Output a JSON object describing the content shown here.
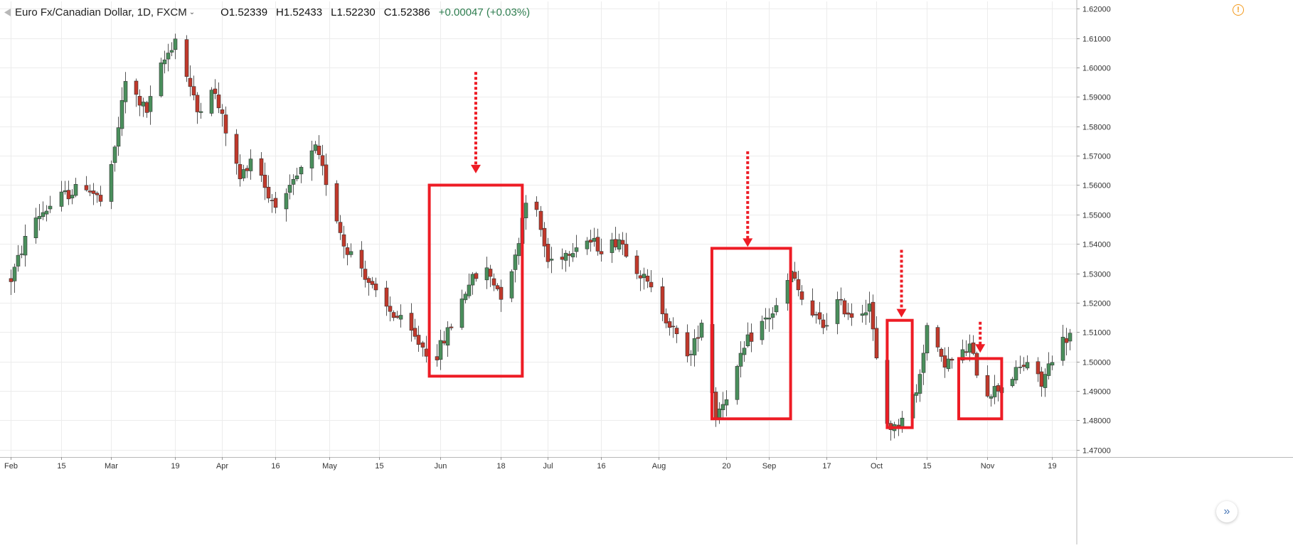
{
  "header": {
    "title": "Euro Fx/Canadian Dollar, 1D, FXCM",
    "chevron": "⌄",
    "open": "O1.52339",
    "high": "H1.52433",
    "low": "L1.52230",
    "close": "C1.52386",
    "change": "+0.00047 (+0.03%)"
  },
  "alert_icon": "!",
  "scroll_button": "»",
  "colors": {
    "up": "#4a8f5c",
    "down": "#c0392b",
    "grid": "#ececec",
    "annotation": "#ee1c25"
  },
  "chart_data": {
    "type": "candlestick",
    "x_ticks": [
      {
        "day": 0,
        "label": "Feb"
      },
      {
        "day": 14,
        "label": "15"
      },
      {
        "day": 28,
        "label": "Mar"
      },
      {
        "day": 46,
        "label": "19"
      },
      {
        "day": 59,
        "label": "Apr"
      },
      {
        "day": 74,
        "label": "16"
      },
      {
        "day": 89,
        "label": "May"
      },
      {
        "day": 103,
        "label": "15"
      },
      {
        "day": 120,
        "label": "Jun"
      },
      {
        "day": 137,
        "label": "18"
      },
      {
        "day": 150,
        "label": "Jul"
      },
      {
        "day": 165,
        "label": "16"
      },
      {
        "day": 181,
        "label": "Aug"
      },
      {
        "day": 200,
        "label": "20"
      },
      {
        "day": 212,
        "label": "Sep"
      },
      {
        "day": 228,
        "label": "17"
      },
      {
        "day": 242,
        "label": "Oct"
      },
      {
        "day": 256,
        "label": "15"
      },
      {
        "day": 273,
        "label": "Nov"
      },
      {
        "day": 291,
        "label": "19"
      }
    ],
    "y_ticks": [
      "1.62000",
      "1.61000",
      "1.60000",
      "1.59000",
      "1.58000",
      "1.57000",
      "1.56000",
      "1.55000",
      "1.54000",
      "1.53000",
      "1.52000",
      "1.51000",
      "1.50000",
      "1.49000",
      "1.48000",
      "1.47000"
    ],
    "ylim": [
      1.4675,
      1.6225
    ],
    "xlim_days": [
      -3,
      298
    ],
    "trend": [
      [
        0,
        1.528
      ],
      [
        6,
        1.548
      ],
      [
        14,
        1.556
      ],
      [
        21,
        1.56
      ],
      [
        26,
        1.553
      ],
      [
        28,
        1.565
      ],
      [
        32,
        1.595
      ],
      [
        38,
        1.585
      ],
      [
        42,
        1.6
      ],
      [
        46,
        1.61
      ],
      [
        52,
        1.585
      ],
      [
        56,
        1.594
      ],
      [
        61,
        1.575
      ],
      [
        64,
        1.562
      ],
      [
        68,
        1.572
      ],
      [
        72,
        1.556
      ],
      [
        76,
        1.553
      ],
      [
        81,
        1.565
      ],
      [
        85,
        1.572
      ],
      [
        89,
        1.558
      ],
      [
        93,
        1.54
      ],
      [
        98,
        1.532
      ],
      [
        103,
        1.52
      ],
      [
        108,
        1.515
      ],
      [
        115,
        1.505
      ],
      [
        118,
        1.5
      ],
      [
        124,
        1.515
      ],
      [
        128,
        1.527
      ],
      [
        133,
        1.531
      ],
      [
        137,
        1.523
      ],
      [
        141,
        1.535
      ],
      [
        144,
        1.556
      ],
      [
        147,
        1.55
      ],
      [
        150,
        1.534
      ],
      [
        155,
        1.537
      ],
      [
        160,
        1.542
      ],
      [
        166,
        1.538
      ],
      [
        170,
        1.542
      ],
      [
        175,
        1.532
      ],
      [
        181,
        1.52
      ],
      [
        186,
        1.508
      ],
      [
        190,
        1.502
      ],
      [
        193,
        1.514
      ],
      [
        197,
        1.482
      ],
      [
        201,
        1.491
      ],
      [
        206,
        1.507
      ],
      [
        210,
        1.513
      ],
      [
        214,
        1.518
      ],
      [
        218,
        1.53
      ],
      [
        222,
        1.518
      ],
      [
        227,
        1.512
      ],
      [
        231,
        1.52
      ],
      [
        236,
        1.515
      ],
      [
        240,
        1.52
      ],
      [
        244,
        1.48
      ],
      [
        247,
        1.477
      ],
      [
        251,
        1.487
      ],
      [
        253,
        1.489
      ],
      [
        256,
        1.512
      ],
      [
        260,
        1.5
      ],
      [
        264,
        1.5
      ],
      [
        268,
        1.505
      ],
      [
        272,
        1.489
      ],
      [
        276,
        1.491
      ],
      [
        280,
        1.495
      ],
      [
        284,
        1.5
      ],
      [
        288,
        1.492
      ],
      [
        292,
        1.505
      ],
      [
        296,
        1.509
      ]
    ],
    "annotation_boxes": [
      {
        "from_day": 117,
        "to_day": 143,
        "top": 1.56,
        "bottom": 1.495
      },
      {
        "from_day": 196,
        "to_day": 218,
        "top": 1.5385,
        "bottom": 1.4805
      },
      {
        "from_day": 245,
        "to_day": 252,
        "top": 1.514,
        "bottom": 1.4775
      },
      {
        "from_day": 265,
        "to_day": 277,
        "top": 1.501,
        "bottom": 1.4805
      }
    ],
    "annotation_arrows": [
      {
        "day": 130,
        "from": 1.5985,
        "to": 1.564
      },
      {
        "day": 206,
        "from": 1.5715,
        "to": 1.539
      },
      {
        "day": 249,
        "from": 1.538,
        "to": 1.515
      },
      {
        "day": 271,
        "from": 1.5135,
        "to": 1.503
      }
    ]
  }
}
